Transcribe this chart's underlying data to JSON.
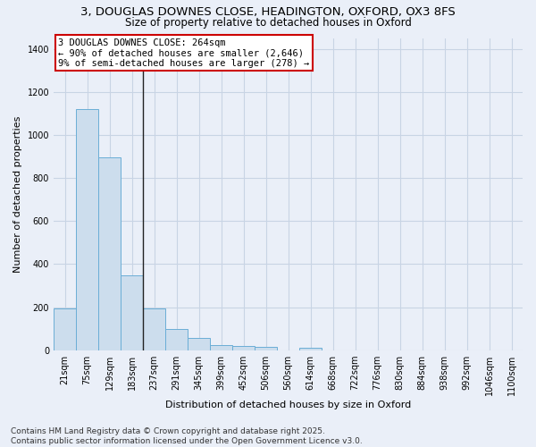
{
  "title_line1": "3, DOUGLAS DOWNES CLOSE, HEADINGTON, OXFORD, OX3 8FS",
  "title_line2": "Size of property relative to detached houses in Oxford",
  "xlabel": "Distribution of detached houses by size in Oxford",
  "ylabel": "Number of detached properties",
  "bar_color": "#ccdded",
  "bar_edge_color": "#6baed6",
  "categories": [
    "21sqm",
    "75sqm",
    "129sqm",
    "183sqm",
    "237sqm",
    "291sqm",
    "345sqm",
    "399sqm",
    "452sqm",
    "506sqm",
    "560sqm",
    "614sqm",
    "668sqm",
    "722sqm",
    "776sqm",
    "830sqm",
    "884sqm",
    "938sqm",
    "992sqm",
    "1046sqm",
    "1100sqm"
  ],
  "values": [
    195,
    1120,
    895,
    350,
    195,
    97,
    58,
    25,
    22,
    15,
    0,
    10,
    0,
    0,
    0,
    0,
    0,
    0,
    0,
    0,
    0
  ],
  "ylim": [
    0,
    1450
  ],
  "yticks": [
    0,
    200,
    400,
    600,
    800,
    1000,
    1200,
    1400
  ],
  "annotation_text": "3 DOUGLAS DOWNES CLOSE: 264sqm\n← 90% of detached houses are smaller (2,646)\n9% of semi-detached houses are larger (278) →",
  "annotation_box_color": "#ffffff",
  "annotation_box_edge": "#cc0000",
  "vline_color": "#222222",
  "grid_color": "#c8d4e4",
  "background_color": "#eaeff8",
  "footer_line1": "Contains HM Land Registry data © Crown copyright and database right 2025.",
  "footer_line2": "Contains public sector information licensed under the Open Government Licence v3.0.",
  "title_fontsize": 9.5,
  "subtitle_fontsize": 8.5,
  "axis_label_fontsize": 8,
  "tick_fontsize": 7,
  "footer_fontsize": 6.5,
  "annotation_fontsize": 7.5,
  "vline_x_index": 3.5
}
